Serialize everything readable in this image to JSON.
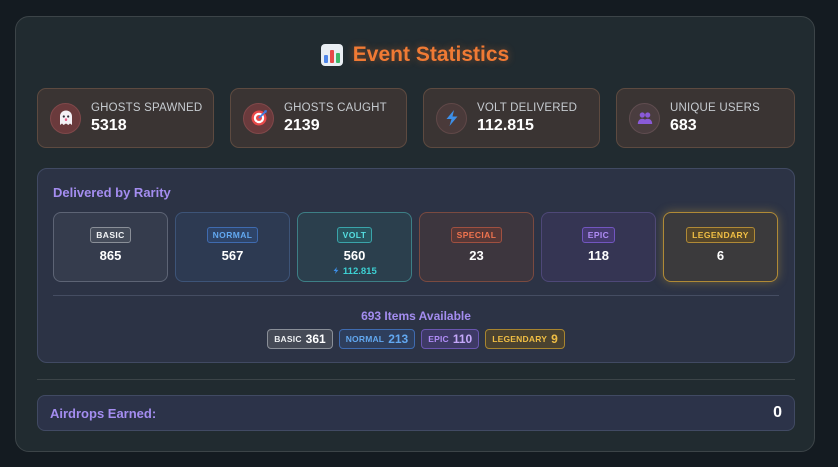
{
  "title": {
    "text": "Event Statistics",
    "icon": "bar-chart-icon"
  },
  "stats": [
    {
      "label": "GHOSTS SPAWNED",
      "value": "5318",
      "icon": "ghost-icon"
    },
    {
      "label": "GHOSTS CAUGHT",
      "value": "2139",
      "icon": "target-icon"
    },
    {
      "label": "VOLT DELIVERED",
      "value": "112.815",
      "icon": "lightning-icon"
    },
    {
      "label": "UNIQUE USERS",
      "value": "683",
      "icon": "users-icon"
    }
  ],
  "rarity": {
    "heading": "Delivered by Rarity",
    "cards": [
      {
        "label": "BASIC",
        "value": "865",
        "color": "#e3e6ea"
      },
      {
        "label": "NORMAL",
        "value": "567",
        "color": "#4f97e8"
      },
      {
        "label": "VOLT",
        "value": "560",
        "sub": "112.815",
        "color": "#3dd0d3"
      },
      {
        "label": "SPECIAL",
        "value": "23",
        "color": "#e8674a"
      },
      {
        "label": "EPIC",
        "value": "118",
        "color": "#a07df0"
      },
      {
        "label": "LEGENDARY",
        "value": "6",
        "color": "#e8b534"
      }
    ],
    "available": "693 Items Available",
    "chips": [
      {
        "label": "BASIC",
        "count": "361",
        "color": "#e3e6ea"
      },
      {
        "label": "NORMAL",
        "count": "213",
        "color": "#4f97e8"
      },
      {
        "label": "EPIC",
        "count": "110",
        "color": "#a07df0"
      },
      {
        "label": "LEGENDARY",
        "count": "9",
        "color": "#e8b534"
      }
    ]
  },
  "airdrops": {
    "label": "Airdrops Earned:",
    "value": "0"
  },
  "colors": {
    "accent": "#f07a34",
    "purple": "#a48df0",
    "background": "#141b21"
  }
}
